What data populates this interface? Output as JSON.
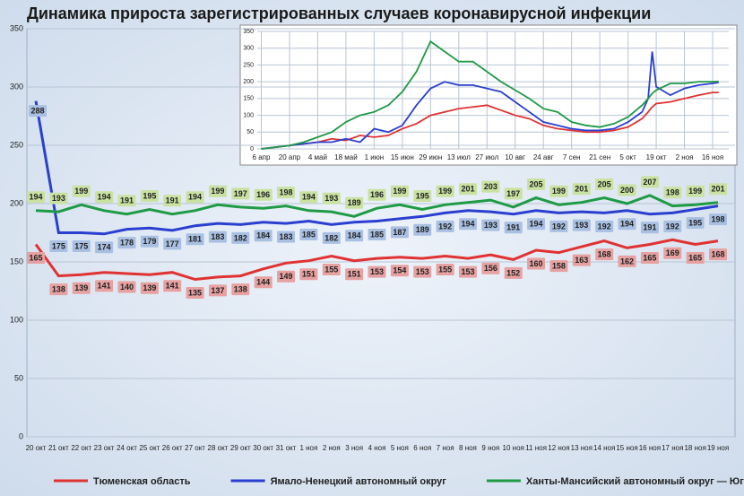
{
  "chart_data": [
    {
      "type": "line",
      "title": "Динамика прироста зарегистрированных случаев коронавирусной инфекции",
      "categories": [
        "20 окт",
        "21 окт",
        "22 окт",
        "23 окт",
        "24 окт",
        "25 окт",
        "26 окт",
        "27 окт",
        "28 окт",
        "29 окт",
        "30 окт",
        "31 окт",
        "1 ноя",
        "2 ноя",
        "3 ноя",
        "4 ноя",
        "5 ноя",
        "6 ноя",
        "7 ноя",
        "8 ноя",
        "9 ноя",
        "10 ноя",
        "11 ноя",
        "12 ноя",
        "13 ноя",
        "14 ноя",
        "15 ноя",
        "16 ноя",
        "17 ноя",
        "18 ноя",
        "19 ноя"
      ],
      "series": [
        {
          "name": "Тюменская область",
          "color": "#e03232",
          "values": [
            165,
            138,
            139,
            141,
            140,
            139,
            141,
            135,
            137,
            138,
            144,
            149,
            151,
            155,
            151,
            153,
            154,
            153,
            155,
            153,
            156,
            152,
            160,
            158,
            163,
            168,
            162,
            165,
            169,
            165,
            168
          ]
        },
        {
          "name": "Ямало-Ненецкий автономный округ",
          "color": "#2a3fd0",
          "values": [
            288,
            175,
            175,
            174,
            178,
            179,
            177,
            181,
            183,
            182,
            184,
            183,
            185,
            182,
            184,
            185,
            187,
            189,
            192,
            194,
            193,
            191,
            194,
            192,
            193,
            192,
            194,
            191,
            192,
            195,
            198
          ]
        },
        {
          "name": "Ханты-Мансийский автономный округ — Югра",
          "color": "#1f9a45",
          "values": [
            194,
            193,
            199,
            194,
            191,
            195,
            191,
            194,
            199,
            197,
            196,
            198,
            194,
            193,
            189,
            196,
            199,
            195,
            199,
            201,
            203,
            197,
            205,
            199,
            201,
            205,
            200,
            207,
            198,
            199,
            201
          ]
        }
      ],
      "ylim": [
        0,
        350
      ],
      "yticks": [
        0,
        50,
        100,
        150,
        200,
        250,
        300,
        350
      ],
      "grid": true,
      "legend": "bottom"
    },
    {
      "type": "line",
      "x": [
        0,
        7,
        14,
        21,
        28,
        35,
        42,
        49,
        56,
        63,
        70,
        77,
        84,
        91,
        98,
        105,
        112,
        119,
        126,
        133,
        140,
        147,
        154,
        161,
        168,
        175,
        182,
        189,
        192,
        194,
        196,
        203,
        210,
        217,
        224,
        227
      ],
      "series": [
        {
          "color": "#e03232",
          "values": [
            0,
            5,
            10,
            15,
            20,
            30,
            25,
            40,
            35,
            40,
            60,
            75,
            100,
            110,
            120,
            125,
            130,
            115,
            100,
            90,
            70,
            60,
            55,
            50,
            50,
            55,
            65,
            90,
            110,
            125,
            135,
            140,
            150,
            160,
            168,
            168
          ]
        },
        {
          "color": "#2a3fd0",
          "values": [
            0,
            5,
            10,
            15,
            20,
            20,
            30,
            20,
            60,
            50,
            70,
            130,
            180,
            200,
            190,
            190,
            180,
            170,
            140,
            110,
            80,
            70,
            60,
            55,
            55,
            60,
            80,
            110,
            150,
            290,
            185,
            160,
            180,
            190,
            195,
            198
          ]
        },
        {
          "color": "#1f9a45",
          "values": [
            0,
            5,
            10,
            20,
            35,
            50,
            80,
            100,
            110,
            130,
            170,
            230,
            320,
            290,
            260,
            260,
            230,
            200,
            175,
            150,
            120,
            110,
            80,
            70,
            65,
            75,
            95,
            130,
            150,
            165,
            175,
            195,
            195,
            200,
            200,
            201
          ]
        }
      ],
      "xlim": [
        -2,
        232
      ],
      "xticks": [
        {
          "value": 0,
          "label": "6 апр"
        },
        {
          "value": 14,
          "label": "20 апр"
        },
        {
          "value": 28,
          "label": "4 май"
        },
        {
          "value": 42,
          "label": "18 май"
        },
        {
          "value": 56,
          "label": "1 июн"
        },
        {
          "value": 70,
          "label": "15 июн"
        },
        {
          "value": 84,
          "label": "29 июн"
        },
        {
          "value": 98,
          "label": "13 июл"
        },
        {
          "value": 112,
          "label": "27 июл"
        },
        {
          "value": 126,
          "label": "10 авг"
        },
        {
          "value": 140,
          "label": "24 авг"
        },
        {
          "value": 154,
          "label": "7 сен"
        },
        {
          "value": 168,
          "label": "21 сен"
        },
        {
          "value": 182,
          "label": "5 окт"
        },
        {
          "value": 196,
          "label": "19 окт"
        },
        {
          "value": 210,
          "label": "2 ноя"
        },
        {
          "value": 224,
          "label": "16 ноя"
        }
      ],
      "ylim": [
        0,
        350
      ],
      "yticks": [
        0,
        50,
        100,
        150,
        200,
        250,
        300,
        350
      ],
      "grid": true
    }
  ]
}
